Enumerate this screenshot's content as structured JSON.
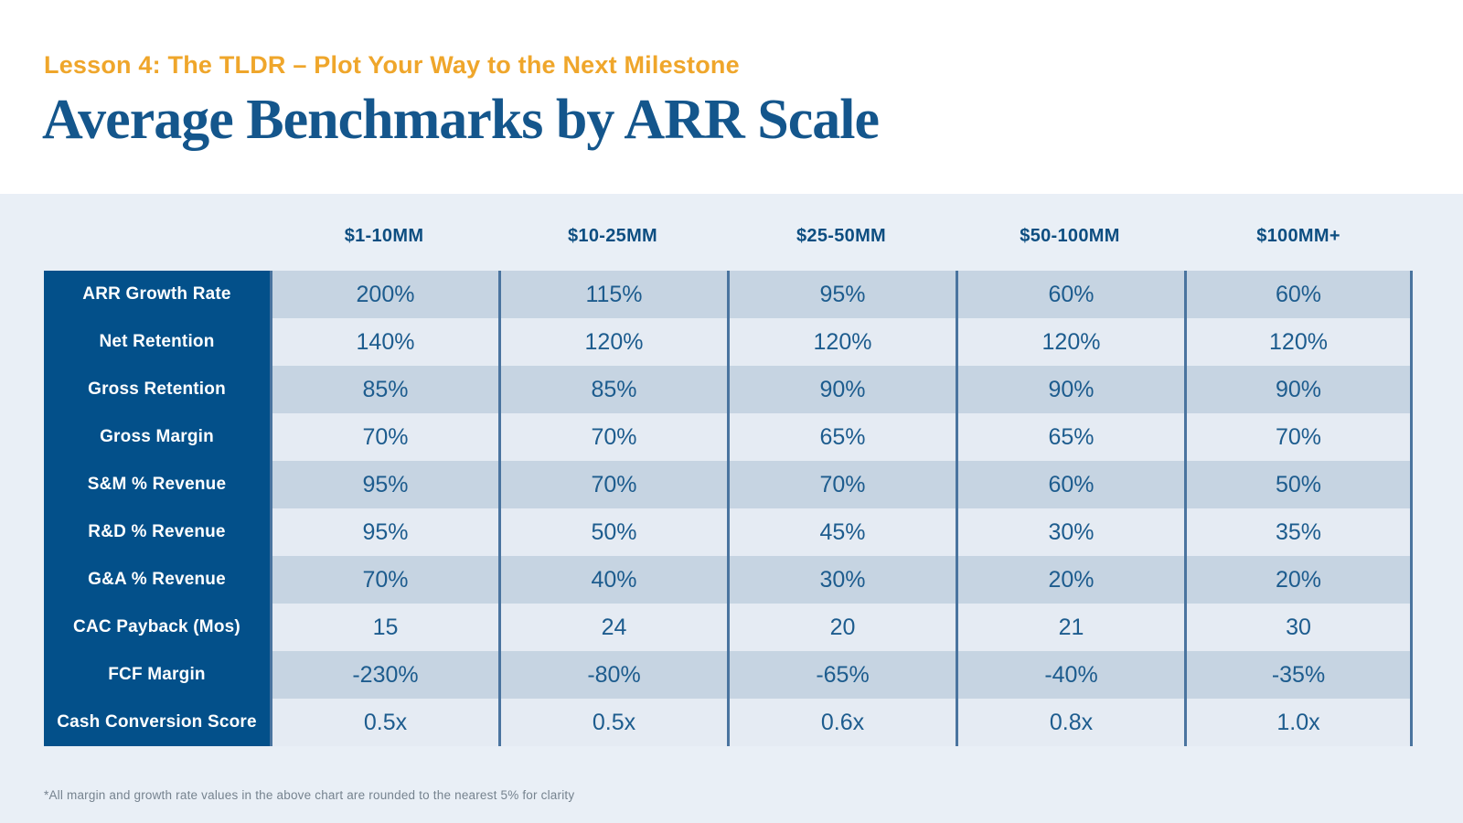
{
  "theme": {
    "page_white": "#FFFFFF",
    "section_bg": "#E9EFF6",
    "eyebrow_orange": "#EFA62B",
    "title_blue": "#14568C",
    "navy_label_bg": "#03508A",
    "header_text": "#0D4E81",
    "value_text": "#1D5C8E",
    "divider": "#4A749F",
    "stripe_dark": "#C6D4E2",
    "stripe_light": "#E5EBF3",
    "footnote_gray": "#76838F"
  },
  "chart_data": {
    "type": "table",
    "eyebrow": "Lesson 4: The TLDR – Plot Your Way to the Next Milestone",
    "title": "Average Benchmarks by ARR Scale",
    "columns": [
      "$1-10MM",
      "$10-25MM",
      "$25-50MM",
      "$50-100MM",
      "$100MM+"
    ],
    "rows": [
      {
        "label": "ARR Growth Rate",
        "values": [
          "200%",
          "115%",
          "95%",
          "60%",
          "60%"
        ]
      },
      {
        "label": "Net Retention",
        "values": [
          "140%",
          "120%",
          "120%",
          "120%",
          "120%"
        ]
      },
      {
        "label": "Gross Retention",
        "values": [
          "85%",
          "85%",
          "90%",
          "90%",
          "90%"
        ]
      },
      {
        "label": "Gross Margin",
        "values": [
          "70%",
          "70%",
          "65%",
          "65%",
          "70%"
        ]
      },
      {
        "label": "S&M % Revenue",
        "values": [
          "95%",
          "70%",
          "70%",
          "60%",
          "50%"
        ]
      },
      {
        "label": "R&D % Revenue",
        "values": [
          "95%",
          "50%",
          "45%",
          "30%",
          "35%"
        ]
      },
      {
        "label": "G&A % Revenue",
        "values": [
          "70%",
          "40%",
          "30%",
          "20%",
          "20%"
        ]
      },
      {
        "label": "CAC Payback (Mos)",
        "values": [
          "15",
          "24",
          "20",
          "21",
          "30"
        ]
      },
      {
        "label": "FCF Margin",
        "values": [
          "-230%",
          "-80%",
          "-65%",
          "-40%",
          "-35%"
        ]
      },
      {
        "label": "Cash Conversion Score",
        "values": [
          "0.5x",
          "0.5x",
          "0.6x",
          "0.8x",
          "1.0x"
        ]
      }
    ],
    "footnote": "*All margin and growth rate values in the above chart are rounded to the nearest 5% for clarity",
    "layout_hints": {
      "legend": "none",
      "grid": "column-dividers-only",
      "header_position": "top"
    }
  }
}
